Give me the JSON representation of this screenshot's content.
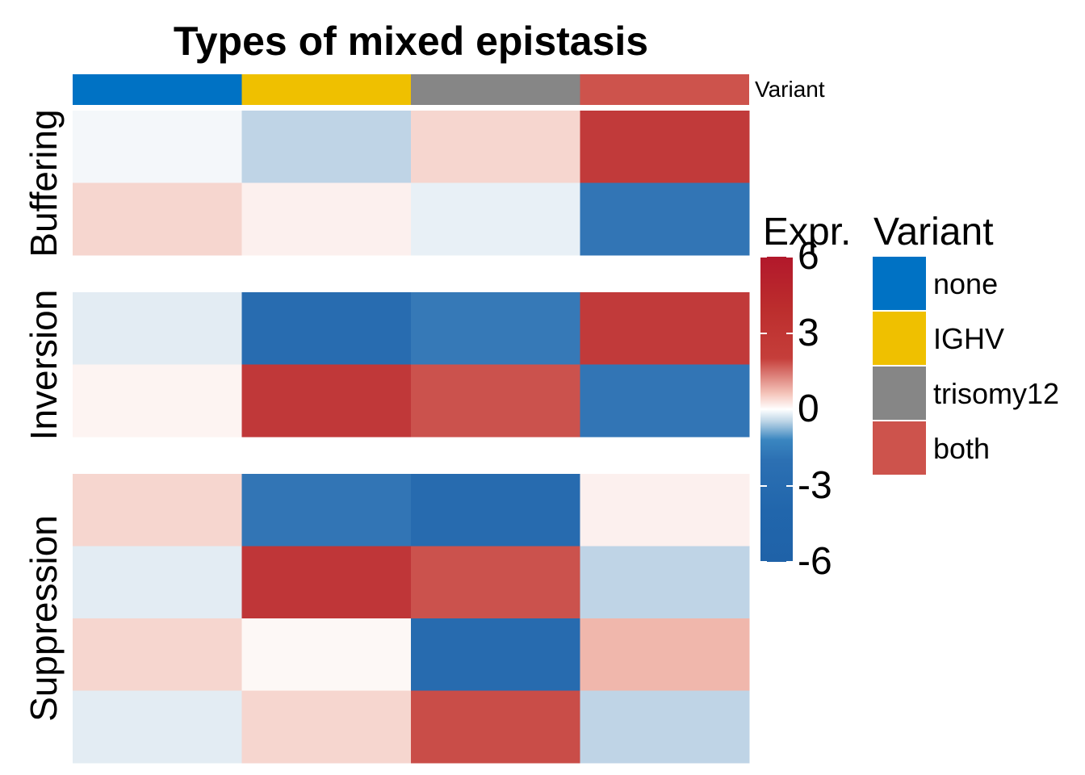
{
  "chart_data": {
    "type": "heatmap",
    "title": "Types of mixed epistasis",
    "columns": [
      "none",
      "IGHV",
      "trisomy12",
      "both"
    ],
    "annotation": {
      "name": "Variant",
      "values": [
        "none",
        "IGHV",
        "trisomy12",
        "both"
      ],
      "colors": {
        "none": "#0072C4",
        "IGHV": "#EFC000",
        "trisomy12": "#868686",
        "both": "#CD534C"
      }
    },
    "row_groups": [
      {
        "name": "Buffering",
        "rows": [
          [
            -0.2,
            -1.2,
            1.1,
            4.5
          ],
          [
            1.1,
            0.4,
            -0.4,
            -4.8
          ]
        ]
      },
      {
        "name": "Inversion",
        "rows": [
          [
            -0.5,
            -5.5,
            -4.5,
            4.5
          ],
          [
            0.3,
            4.6,
            3.9,
            -4.8
          ]
        ]
      },
      {
        "name": "Suppression",
        "rows": [
          [
            1.1,
            -4.8,
            -5.6,
            0.4
          ],
          [
            -0.5,
            4.7,
            3.9,
            -1.2
          ],
          [
            1.1,
            0.2,
            -5.6,
            2.0
          ],
          [
            -0.5,
            1.1,
            4.0,
            -1.2
          ]
        ]
      }
    ],
    "colorbar": {
      "title": "Expr.",
      "ticks": [
        6,
        3,
        0,
        -3,
        -6
      ],
      "range": [
        -6,
        6
      ],
      "low": "#2166AC",
      "mid": "#FFFFFF",
      "high": "#B2182B"
    },
    "legend": {
      "title": "Variant",
      "labels": [
        "none",
        "IGHV",
        "trisomy12",
        "both"
      ]
    }
  }
}
